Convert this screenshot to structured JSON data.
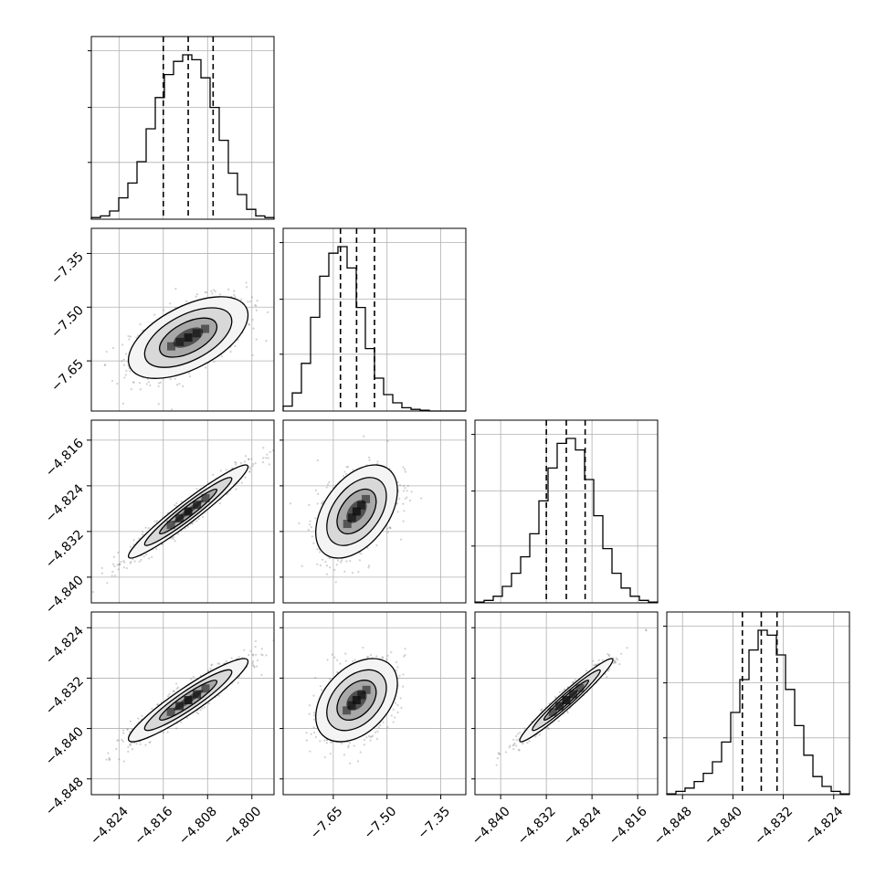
{
  "chart_data": {
    "type": "corner",
    "parameters": [
      {
        "range": [
          -4.829,
          -4.796
        ],
        "median": -4.8115,
        "q16": -4.816,
        "q84": -4.807,
        "ticks": [
          -4.824,
          -4.816,
          -4.808,
          -4.8
        ],
        "tick_labels": [
          "−4.824",
          "−4.816",
          "−4.808",
          "−4.800"
        ],
        "hist": [
          0.01,
          0.02,
          0.05,
          0.13,
          0.22,
          0.35,
          0.55,
          0.74,
          0.88,
          0.96,
          1.0,
          0.97,
          0.86,
          0.68,
          0.48,
          0.28,
          0.15,
          0.06,
          0.02,
          0.01
        ]
      },
      {
        "range": [
          -7.79,
          -7.28
        ],
        "median": -7.585,
        "q16": -7.63,
        "q84": -7.535,
        "ticks": [
          -7.65,
          -7.5,
          -7.35
        ],
        "tick_labels": [
          "−7.65",
          "−7.50",
          "−7.35"
        ],
        "hist": [
          0.03,
          0.11,
          0.29,
          0.57,
          0.82,
          0.96,
          1.0,
          0.87,
          0.63,
          0.38,
          0.2,
          0.1,
          0.05,
          0.02,
          0.01,
          0.005,
          0.0,
          0.0,
          0.0,
          0.0
        ]
      },
      {
        "range": [
          -4.8445,
          -4.8125
        ],
        "median": -4.8285,
        "q16": -4.832,
        "q84": -4.8252,
        "ticks": [
          -4.84,
          -4.832,
          -4.824,
          -4.816
        ],
        "tick_labels": [
          "−4.840",
          "−4.832",
          "−4.824",
          "−4.816"
        ],
        "hist": [
          0.005,
          0.015,
          0.04,
          0.1,
          0.18,
          0.28,
          0.42,
          0.62,
          0.82,
          0.97,
          1.0,
          0.93,
          0.75,
          0.53,
          0.33,
          0.18,
          0.09,
          0.04,
          0.015,
          0.005
        ]
      },
      {
        "range": [
          -4.8505,
          -4.8215
        ],
        "median": -4.8355,
        "q16": -4.8385,
        "q84": -4.833,
        "ticks": [
          -4.848,
          -4.84,
          -4.832,
          -4.824
        ],
        "tick_labels": [
          "−4.848",
          "−4.840",
          "−4.832",
          "−4.824"
        ],
        "hist": [
          0.005,
          0.02,
          0.04,
          0.08,
          0.13,
          0.2,
          0.32,
          0.5,
          0.7,
          0.88,
          1.0,
          0.97,
          0.85,
          0.64,
          0.42,
          0.24,
          0.11,
          0.05,
          0.02,
          0.005
        ]
      }
    ],
    "pairs": [
      {
        "row": 1,
        "col": 0,
        "center": [
          -4.8115,
          -7.585
        ],
        "rho": 0.55
      },
      {
        "row": 2,
        "col": 0,
        "center": [
          -4.8115,
          -4.8285
        ],
        "rho": 0.96
      },
      {
        "row": 2,
        "col": 1,
        "center": [
          -7.585,
          -4.8285
        ],
        "rho": 0.45
      },
      {
        "row": 3,
        "col": 0,
        "center": [
          -4.8115,
          -4.8355
        ],
        "rho": 0.93
      },
      {
        "row": 3,
        "col": 1,
        "center": [
          -7.585,
          -4.8355
        ],
        "rho": 0.4
      },
      {
        "row": 3,
        "col": 2,
        "center": [
          -4.8285,
          -4.8355
        ],
        "rho": 0.97
      }
    ],
    "grid": true,
    "colors": {
      "hist": "#000000",
      "scatter": "#808080",
      "density": "#000000"
    }
  }
}
